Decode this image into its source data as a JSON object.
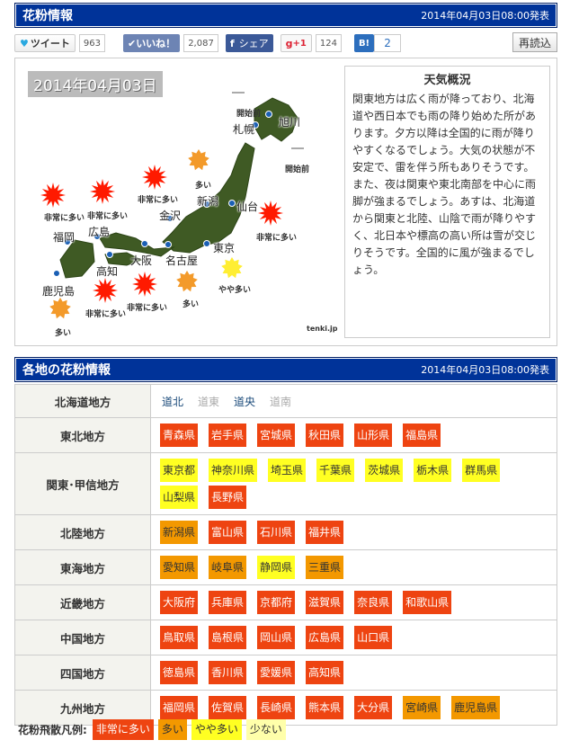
{
  "header": {
    "title": "花粉情報",
    "published": "2014年04月03日08:00発表"
  },
  "social": {
    "tweet": "ツイート",
    "tweet_count": "963",
    "like": "いいね！",
    "like_count": "2,087",
    "share": "シェア",
    "gplus": "+1",
    "gplus_count": "124",
    "hatena": "B!",
    "hatena_count": "2",
    "reload": "再読込"
  },
  "map": {
    "date": "2014年04月03日",
    "credit": "tenki.jp",
    "cities": [
      "旭川",
      "札幌",
      "新潟",
      "仙台",
      "金沢",
      "福岡",
      "広島",
      "東京",
      "大阪",
      "名古屋",
      "高知",
      "鹿児島"
    ],
    "not_started": [
      "開始前",
      "開始前"
    ],
    "bursts": [
      {
        "label": "非常に多い",
        "level": "very_high"
      },
      {
        "label": "非常に多い",
        "level": "very_high"
      },
      {
        "label": "非常に多い",
        "level": "very_high"
      },
      {
        "label": "多い",
        "level": "high"
      },
      {
        "label": "非常に多い",
        "level": "very_high"
      },
      {
        "label": "やや多い",
        "level": "moderate"
      },
      {
        "label": "多い",
        "level": "high"
      },
      {
        "label": "非常に多い",
        "level": "very_high"
      },
      {
        "label": "非常に多い",
        "level": "very_high"
      },
      {
        "label": "多い",
        "level": "high"
      }
    ]
  },
  "weather": {
    "title": "天気概況",
    "text": "関東地方は広く雨が降っており、北海道や西日本でも雨の降り始めた所があります。夕方以降は全国的に雨が降りやすくなるでしょう。大気の状態が不安定で、雷を伴う所もありそうです。また、夜は関東や東北南部を中心に雨脚が強まるでしょう。あすは、北海道から関東と北陸、山陰で雨が降りやすく、北日本や標高の高い所は雪が交じりそうです。全国的に風が強まるでしょう。"
  },
  "regional": {
    "title": "各地の花粉情報",
    "published": "2014年04月03日08:00発表",
    "hokkaido": {
      "name": "北海道地方",
      "areas": [
        {
          "name": "道北",
          "active": true
        },
        {
          "name": "道東",
          "active": false
        },
        {
          "name": "道央",
          "active": true
        },
        {
          "name": "道南",
          "active": false
        }
      ]
    },
    "regions": [
      {
        "name": "東北地方",
        "prefs": [
          [
            "青森県",
            "very_high"
          ],
          [
            "岩手県",
            "very_high"
          ],
          [
            "宮城県",
            "very_high"
          ],
          [
            "秋田県",
            "very_high"
          ],
          [
            "山形県",
            "very_high"
          ],
          [
            "福島県",
            "very_high"
          ]
        ]
      },
      {
        "name": "関東･甲信地方",
        "prefs": [
          [
            "東京都",
            "moderate"
          ],
          [
            "神奈川県",
            "moderate"
          ],
          [
            "埼玉県",
            "moderate"
          ],
          [
            "千葉県",
            "moderate"
          ],
          [
            "茨城県",
            "moderate"
          ],
          [
            "栃木県",
            "moderate"
          ],
          [
            "群馬県",
            "moderate"
          ],
          [
            "山梨県",
            "moderate"
          ],
          [
            "長野県",
            "very_high"
          ]
        ]
      },
      {
        "name": "北陸地方",
        "prefs": [
          [
            "新潟県",
            "high"
          ],
          [
            "富山県",
            "very_high"
          ],
          [
            "石川県",
            "very_high"
          ],
          [
            "福井県",
            "very_high"
          ]
        ]
      },
      {
        "name": "東海地方",
        "prefs": [
          [
            "愛知県",
            "high"
          ],
          [
            "岐阜県",
            "high"
          ],
          [
            "静岡県",
            "moderate"
          ],
          [
            "三重県",
            "high"
          ]
        ]
      },
      {
        "name": "近畿地方",
        "prefs": [
          [
            "大阪府",
            "very_high"
          ],
          [
            "兵庫県",
            "very_high"
          ],
          [
            "京都府",
            "very_high"
          ],
          [
            "滋賀県",
            "very_high"
          ],
          [
            "奈良県",
            "very_high"
          ],
          [
            "和歌山県",
            "very_high"
          ]
        ]
      },
      {
        "name": "中国地方",
        "prefs": [
          [
            "鳥取県",
            "very_high"
          ],
          [
            "島根県",
            "very_high"
          ],
          [
            "岡山県",
            "very_high"
          ],
          [
            "広島県",
            "very_high"
          ],
          [
            "山口県",
            "very_high"
          ]
        ]
      },
      {
        "name": "四国地方",
        "prefs": [
          [
            "徳島県",
            "very_high"
          ],
          [
            "香川県",
            "very_high"
          ],
          [
            "愛媛県",
            "very_high"
          ],
          [
            "高知県",
            "very_high"
          ]
        ]
      },
      {
        "name": "九州地方",
        "prefs": [
          [
            "福岡県",
            "very_high"
          ],
          [
            "佐賀県",
            "very_high"
          ],
          [
            "長崎県",
            "very_high"
          ],
          [
            "熊本県",
            "very_high"
          ],
          [
            "大分県",
            "very_high"
          ],
          [
            "宮崎県",
            "high"
          ],
          [
            "鹿児島県",
            "high"
          ]
        ]
      }
    ]
  },
  "legend": {
    "label": "花粉飛散凡例:",
    "items": [
      {
        "label": "非常に多い",
        "level": "very_high"
      },
      {
        "label": "多い",
        "level": "high"
      },
      {
        "label": "やや多い",
        "level": "moderate"
      },
      {
        "label": "少ない",
        "level": "low"
      }
    ]
  },
  "colors": {
    "very_high": "#ee4411",
    "high": "#f39800",
    "moderate": "#ffff22",
    "low": "#ffffaa",
    "header": "#003399",
    "link_active": "#1a4a7a",
    "link_inactive": "#aaaaaa"
  }
}
